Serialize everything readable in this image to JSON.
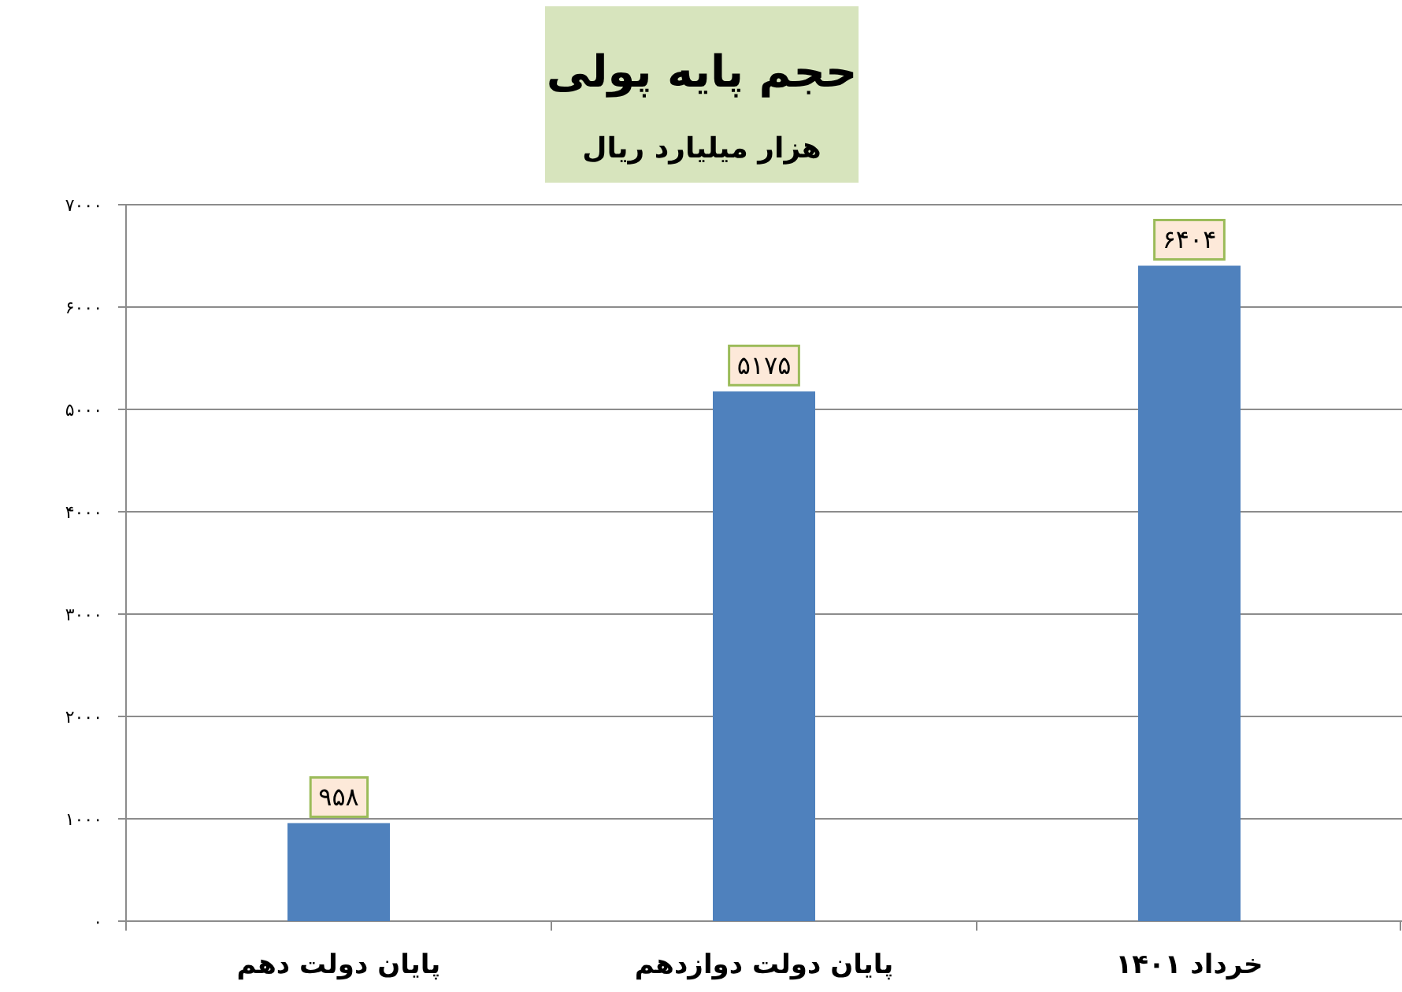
{
  "chart_data": {
    "type": "bar",
    "title": "حجم پایه پولی",
    "subtitle": "هزار میلیارد ریال",
    "categories": [
      "پایان دولت دهم",
      "پایان دولت دوازدهم",
      "خرداد ۱۴۰۱"
    ],
    "values": [
      958,
      5175,
      6404
    ],
    "color": "#4f81bd",
    "value_labels": [
      "۹۵۸",
      "۵۱۷۵",
      "۶۴۰۴"
    ],
    "ylim": [
      0,
      7000
    ],
    "yticks": [
      {
        "value": 0,
        "label": "۰"
      },
      {
        "value": 1000,
        "label": "۱۰۰۰"
      },
      {
        "value": 2000,
        "label": "۲۰۰۰"
      },
      {
        "value": 3000,
        "label": "۳۰۰۰"
      },
      {
        "value": 4000,
        "label": "۴۰۰۰"
      },
      {
        "value": 5000,
        "label": "۵۰۰۰"
      },
      {
        "value": 6000,
        "label": "۶۰۰۰"
      },
      {
        "value": 7000,
        "label": "۷۰۰۰"
      }
    ],
    "grid": "y"
  }
}
